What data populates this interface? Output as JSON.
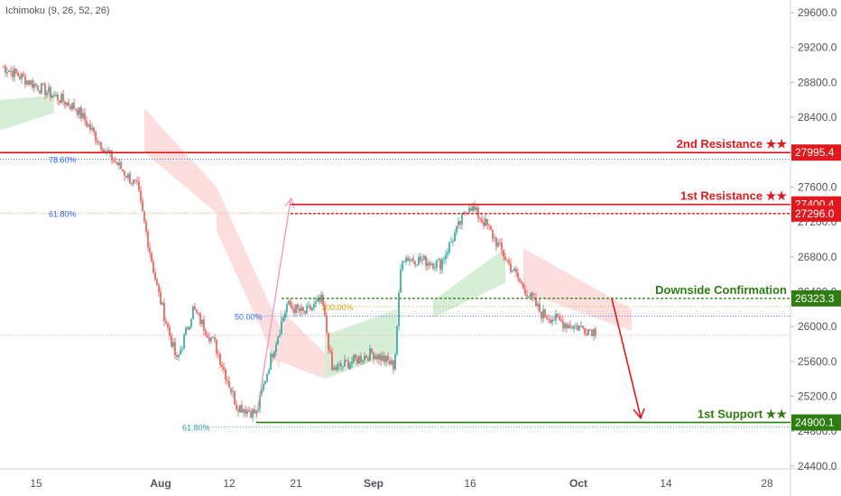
{
  "indicator": {
    "label": "Ichimoku (9, 26, 52, 26)"
  },
  "colors": {
    "up": "#26a69a",
    "down": "#ef5350",
    "resistance": "#e0191f",
    "support": "#2f7d12",
    "axis_text": "#50535e",
    "cloud_green": "#a5d6a7",
    "cloud_red": "#f8b6b6",
    "fib_blue": "#2962ff",
    "fib_orange": "#d4a017",
    "fib_teal": "#26a69a"
  },
  "chart_data": {
    "type": "candlestick",
    "y_axis": {
      "range": [
        24000,
        29800
      ],
      "ticks": [
        {
          "value": 29600,
          "label": "29600.0"
        },
        {
          "value": 29200,
          "label": "29200.0"
        },
        {
          "value": 28800,
          "label": "28800.0"
        },
        {
          "value": 28400,
          "label": "28400.0"
        },
        {
          "value": 28000,
          "label": "28000.0"
        },
        {
          "value": 27600,
          "label": "27600.0"
        },
        {
          "value": 27200,
          "label": "27200.0"
        },
        {
          "value": 26800,
          "label": "26800.0"
        },
        {
          "value": 26400,
          "label": "26400.0"
        },
        {
          "value": 26000,
          "label": "26000.0"
        },
        {
          "value": 25600,
          "label": "25600.0"
        },
        {
          "value": 25200,
          "label": "25200.0"
        },
        {
          "value": 24800,
          "label": "24800.0"
        },
        {
          "value": 24400,
          "label": "24400.0"
        }
      ]
    },
    "x_axis": {
      "ticks": [
        {
          "label": "15",
          "bold": false,
          "x": 40
        },
        {
          "label": "Aug",
          "bold": true,
          "x": 178
        },
        {
          "label": "12",
          "bold": false,
          "x": 254
        },
        {
          "label": "21",
          "bold": false,
          "x": 328
        },
        {
          "label": "Sep",
          "bold": true,
          "x": 414
        },
        {
          "label": "16",
          "bold": false,
          "x": 521
        },
        {
          "label": "Oct",
          "bold": true,
          "x": 641
        },
        {
          "label": "14",
          "bold": false,
          "x": 738
        },
        {
          "label": "28",
          "bold": false,
          "x": 850
        }
      ]
    },
    "levels": [
      {
        "name": "2nd Resistance ★★",
        "value": 27995.4,
        "price_label": "27995.4",
        "color": "#e0191f",
        "kind": "resistance"
      },
      {
        "name": "1st Resistance ★★",
        "value": 27400.4,
        "price_label": "27400.4",
        "color": "#e0191f",
        "kind": "resistance"
      },
      {
        "name": "",
        "value": 27296.0,
        "price_label": "27296.0",
        "color": "#e0191f",
        "kind": "resistance-zone"
      },
      {
        "name": "Downside Confirmation",
        "value": 26323.3,
        "price_label": "26323.3",
        "color": "#2f7d12",
        "kind": "confirmation"
      },
      {
        "name": "1st Support ★★",
        "value": 24900.1,
        "price_label": "24900.1",
        "color": "#2f7d12",
        "kind": "support"
      }
    ],
    "fib_labels": [
      {
        "label": "78.60%",
        "value": 27920
      },
      {
        "label": "61.80%",
        "value": 27300
      },
      {
        "label": "50.00%",
        "value": 26120
      },
      {
        "label": "100.00%",
        "value": 26230
      },
      {
        "label": "61.80%",
        "value": 24850
      }
    ],
    "anchors": [
      {
        "value": 29000
      },
      {
        "value": 28500
      },
      {
        "value": 28000
      },
      {
        "value": 27600
      },
      {
        "value": 26400
      },
      {
        "value": 25600
      },
      {
        "value": 26200
      },
      {
        "value": 25800
      },
      {
        "value": 25100
      },
      {
        "value": 25000
      },
      {
        "value": 25600
      },
      {
        "value": 26250
      },
      {
        "value": 26150
      },
      {
        "value": 26300
      },
      {
        "value": 25500
      },
      {
        "value": 25700
      },
      {
        "value": 25550
      },
      {
        "value": 26800
      },
      {
        "value": 26720
      },
      {
        "value": 27400
      },
      {
        "value": 27150
      },
      {
        "value": 26700
      },
      {
        "value": 26450
      },
      {
        "value": 26150
      },
      {
        "value": 26020
      },
      {
        "value": 25950
      }
    ]
  }
}
